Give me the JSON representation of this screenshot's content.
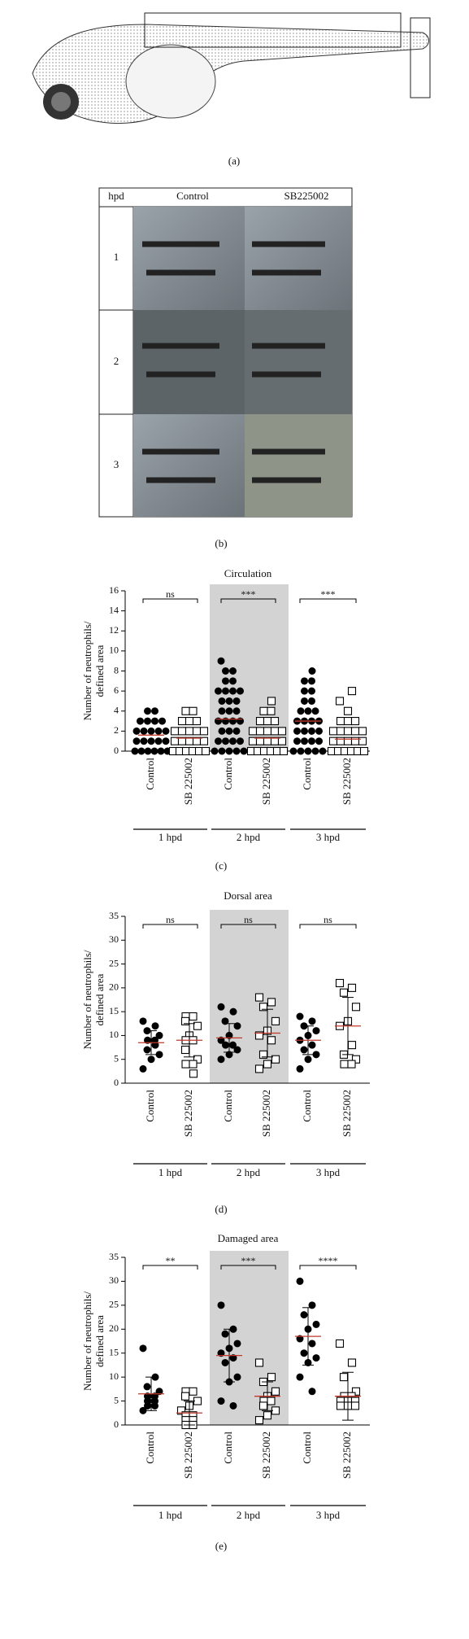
{
  "panel_a": {
    "label": "(a)"
  },
  "panel_b": {
    "label": "(b)",
    "header": [
      "hpd",
      "Control",
      "SB225002"
    ],
    "rows": [
      "1",
      "2",
      "3"
    ]
  },
  "chart_data": [
    {
      "type": "strip",
      "label": "(c)",
      "title": "Circulation",
      "y_label": [
        "Number of neutrophils/",
        "defined area"
      ],
      "ylim": [
        0,
        16
      ],
      "yticks": [
        0,
        2,
        4,
        6,
        8,
        10,
        12,
        14,
        16
      ],
      "categories": [
        "Control",
        "SB 225002",
        "Control",
        "SB 225002",
        "Control",
        "SB 225002"
      ],
      "markers": [
        "filled-circle",
        "open-square",
        "filled-circle",
        "open-square",
        "filled-circle",
        "open-square"
      ],
      "group_labels": [
        "1 hpd",
        "2 hpd",
        "3 hpd"
      ],
      "significance": [
        "ns",
        "***",
        "***"
      ],
      "shaded_group": 1,
      "points": [
        [
          0,
          0,
          0,
          0,
          0,
          0,
          1,
          1,
          1,
          1,
          1,
          2,
          2,
          2,
          2,
          2,
          3,
          3,
          3,
          3,
          4,
          4
        ],
        [
          0,
          0,
          0,
          0,
          0,
          0,
          1,
          1,
          1,
          1,
          1,
          2,
          2,
          2,
          2,
          2,
          3,
          3,
          3,
          4,
          4
        ],
        [
          0,
          0,
          0,
          0,
          0,
          1,
          1,
          1,
          1,
          2,
          2,
          2,
          3,
          3,
          3,
          3,
          4,
          4,
          4,
          5,
          5,
          5,
          6,
          6,
          6,
          6,
          7,
          7,
          8,
          8,
          9
        ],
        [
          0,
          0,
          0,
          0,
          0,
          0,
          1,
          1,
          1,
          1,
          1,
          2,
          2,
          2,
          2,
          2,
          3,
          3,
          3,
          4,
          4,
          5
        ],
        [
          0,
          0,
          0,
          0,
          0,
          1,
          1,
          1,
          1,
          2,
          2,
          2,
          2,
          3,
          3,
          3,
          3,
          4,
          4,
          4,
          5,
          5,
          6,
          6,
          7,
          7,
          8
        ],
        [
          0,
          0,
          0,
          0,
          0,
          0,
          1,
          1,
          1,
          1,
          1,
          2,
          2,
          2,
          2,
          2,
          3,
          3,
          3,
          4,
          5,
          6
        ]
      ],
      "means": [
        1.6,
        1.3,
        3.2,
        1.3,
        3.0,
        1.2
      ]
    },
    {
      "type": "strip",
      "label": "(d)",
      "title": "Dorsal area",
      "y_label": [
        "Number of neutrophils/",
        "defined area"
      ],
      "ylim": [
        0,
        35
      ],
      "yticks": [
        0,
        5,
        10,
        15,
        20,
        25,
        30,
        35
      ],
      "categories": [
        "Control",
        "SB 225002",
        "Control",
        "SB 225002",
        "Control",
        "SB 225002"
      ],
      "markers": [
        "filled-circle",
        "open-square",
        "filled-circle",
        "open-square",
        "filled-circle",
        "open-square"
      ],
      "group_labels": [
        "1 hpd",
        "2 hpd",
        "3 hpd"
      ],
      "significance": [
        "ns",
        "ns",
        "ns"
      ],
      "shaded_group": 1,
      "points": [
        [
          13,
          12,
          11,
          10,
          9,
          9,
          8,
          7,
          6,
          5,
          3
        ],
        [
          14,
          14,
          13,
          12,
          10,
          9,
          9,
          7,
          5,
          4,
          4,
          2
        ],
        [
          16,
          15,
          13,
          12,
          10,
          9,
          8,
          8,
          7,
          6,
          5
        ],
        [
          18,
          17,
          16,
          13,
          11,
          10,
          9,
          6,
          5,
          4,
          3
        ],
        [
          14,
          13,
          12,
          11,
          10,
          9,
          8,
          7,
          6,
          5,
          3
        ],
        [
          21,
          20,
          19,
          16,
          13,
          12,
          8,
          6,
          5,
          4,
          4
        ]
      ],
      "means": [
        8.5,
        9,
        9.5,
        10.5,
        9,
        12
      ],
      "sds": [
        2.5,
        3.5,
        3,
        5,
        3,
        6
      ]
    },
    {
      "type": "strip",
      "label": "(e)",
      "title": "Damaged area",
      "y_label": [
        "Number of neutrophils/",
        "defined area"
      ],
      "ylim": [
        0,
        35
      ],
      "yticks": [
        0,
        5,
        10,
        15,
        20,
        25,
        30,
        35
      ],
      "categories": [
        "Control",
        "SB 225002",
        "Control",
        "SB 225002",
        "Control",
        "SB 225002"
      ],
      "markers": [
        "filled-circle",
        "open-square",
        "filled-circle",
        "open-square",
        "filled-circle",
        "open-square"
      ],
      "group_labels": [
        "1 hpd",
        "2 hpd",
        "3 hpd"
      ],
      "significance": [
        "**",
        "***",
        "****"
      ],
      "shaded_group": 1,
      "points": [
        [
          16,
          10,
          8,
          7,
          6,
          6,
          5,
          5,
          4,
          4,
          3
        ],
        [
          7,
          7,
          6,
          5,
          4,
          3,
          2,
          2,
          1,
          1,
          0,
          0
        ],
        [
          25,
          20,
          19,
          17,
          16,
          15,
          14,
          13,
          10,
          9,
          5,
          4
        ],
        [
          13,
          10,
          9,
          7,
          6,
          5,
          5,
          4,
          3,
          2,
          1
        ],
        [
          30,
          25,
          23,
          21,
          20,
          18,
          17,
          15,
          14,
          13,
          10,
          7
        ],
        [
          17,
          13,
          10,
          7,
          6,
          6,
          5,
          5,
          5,
          4,
          4,
          4
        ]
      ],
      "means": [
        6.5,
        2.5,
        14.5,
        6,
        18.5,
        6
      ],
      "sds": [
        3.5,
        2.5,
        5.5,
        3,
        6,
        5
      ]
    }
  ]
}
